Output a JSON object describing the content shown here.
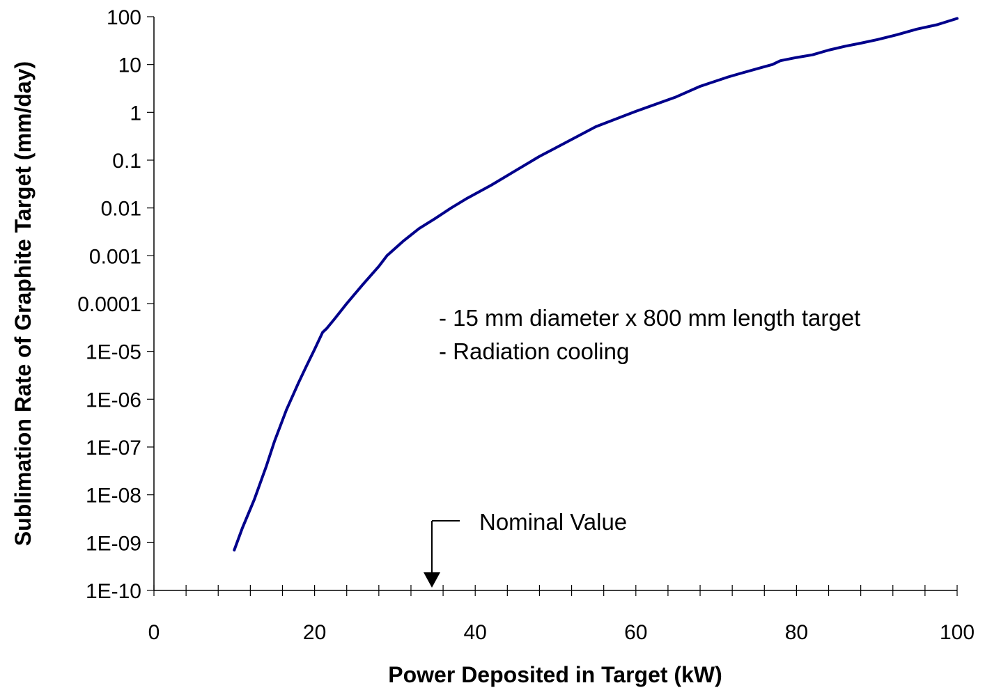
{
  "chart_data": {
    "type": "line",
    "title": "",
    "xlabel": "Power Deposited in Target (kW)",
    "ylabel": "Sublimation Rate of Graphite Target (mm/day)",
    "xlim": [
      0,
      100
    ],
    "ylim": [
      1e-10,
      100
    ],
    "yscale": "log",
    "grid": false,
    "x_ticks": [
      0,
      20,
      40,
      60,
      80,
      100
    ],
    "x_tick_labels": [
      "0",
      "20",
      "40",
      "60",
      "80",
      "100"
    ],
    "y_ticks": [
      1e-10,
      1e-09,
      1e-08,
      1e-07,
      1e-06,
      1e-05,
      0.0001,
      0.001,
      0.01,
      0.1,
      1,
      10,
      100
    ],
    "y_tick_labels": [
      "1E-10",
      "1E-09",
      "1E-08",
      "1E-07",
      "1E-06",
      "1E-05",
      "0.0001",
      "0.001",
      "0.01",
      "0.1",
      "1",
      "10",
      "100"
    ],
    "series": [
      {
        "color": "#00008B",
        "x": [
          10,
          11,
          12.5,
          14,
          15,
          16.5,
          18,
          19,
          20,
          21,
          21.5,
          22.5,
          24,
          26,
          28,
          29,
          31,
          33,
          35,
          37,
          39,
          42,
          45,
          48,
          50,
          55,
          60,
          65,
          68,
          71.5,
          73,
          76,
          77,
          78,
          80,
          82,
          84,
          86,
          88,
          90,
          92.5,
          95,
          97.5,
          100
        ],
        "y": [
          7e-10,
          2e-09,
          8e-09,
          4e-08,
          1.3e-07,
          6e-07,
          2.2e-06,
          5e-06,
          1.1e-05,
          2.5e-05,
          3e-05,
          4.8e-05,
          0.0001,
          0.00025,
          0.0006,
          0.001,
          0.002,
          0.0037,
          0.006,
          0.01,
          0.016,
          0.03,
          0.06,
          0.12,
          0.18,
          0.5,
          1.05,
          2.1,
          3.5,
          5.5,
          6.5,
          9,
          10,
          12,
          14,
          16,
          20,
          24,
          28,
          33,
          42,
          55,
          68,
          92
        ]
      }
    ],
    "annotations": [
      {
        "text": "-  15 mm diameter x 800 mm length target"
      },
      {
        "text": "-   Radiation cooling"
      },
      {
        "text": "Nominal Value",
        "x": 35
      }
    ]
  }
}
